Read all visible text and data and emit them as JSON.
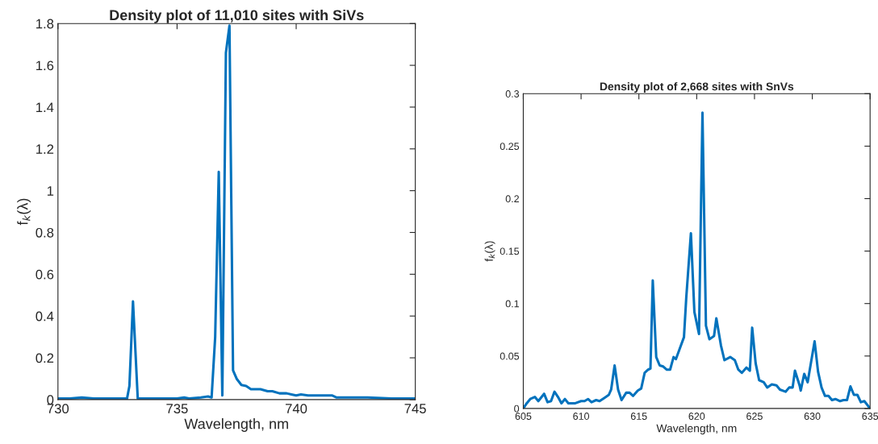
{
  "chart_data": [
    {
      "type": "line",
      "title": "Density plot of 11,010 sites with SiVs",
      "xlabel": "Wavelength, nm",
      "ylabel": "f$_{k}$(λ)",
      "xlim": [
        730,
        745
      ],
      "xticks": [
        730,
        735,
        740,
        745
      ],
      "ylim": [
        0,
        1.8
      ],
      "yticks": [
        0,
        0.2,
        0.4,
        0.6,
        0.8,
        1,
        1.2,
        1.4,
        1.6,
        1.8
      ],
      "grid": false,
      "marker": "none",
      "line_style": "solid",
      "series": [
        {
          "color": "#0072bd",
          "x": [
            730,
            730.5,
            731,
            731.5,
            732,
            732.5,
            732.9,
            733.0,
            733.15,
            733.35,
            734,
            735,
            735.3,
            735.5,
            736.0,
            736.3,
            736.45,
            736.6,
            736.75,
            736.9,
            737.05,
            737.2,
            737.35,
            737.5,
            737.7,
            737.9,
            738.1,
            738.5,
            738.8,
            739.0,
            739.3,
            739.6,
            739.8,
            740.0,
            740.2,
            740.5,
            741,
            741.5,
            741.7,
            742,
            742.5,
            743,
            744,
            745
          ],
          "values": [
            0.005,
            0.005,
            0.01,
            0.005,
            0.005,
            0.005,
            0.005,
            0.065,
            0.47,
            0.005,
            0.005,
            0.005,
            0.01,
            0.005,
            0.01,
            0.015,
            0.01,
            0.3,
            1.09,
            0.02,
            1.66,
            1.79,
            0.14,
            0.1,
            0.07,
            0.065,
            0.05,
            0.05,
            0.04,
            0.04,
            0.03,
            0.03,
            0.025,
            0.02,
            0.025,
            0.02,
            0.02,
            0.02,
            0.01,
            0.01,
            0.01,
            0.01,
            0.005,
            0.005
          ]
        }
      ]
    },
    {
      "type": "line",
      "title": "Density plot of 2,668 sites with SnVs",
      "xlabel": "Wavelength, nm",
      "ylabel": "f$_{k}$(λ)",
      "xlim": [
        605,
        635
      ],
      "xticks": [
        605,
        610,
        615,
        620,
        625,
        630,
        635
      ],
      "ylim": [
        0,
        0.3
      ],
      "yticks": [
        0,
        0.05,
        0.1,
        0.15,
        0.2,
        0.25,
        0.3
      ],
      "grid": false,
      "marker": "none",
      "line_style": "solid",
      "series": [
        {
          "color": "#0072bd",
          "x": [
            605,
            605.3,
            605.6,
            606.0,
            606.3,
            606.8,
            607.1,
            607.4,
            607.7,
            608.0,
            608.3,
            608.6,
            608.9,
            609.5,
            610,
            610.3,
            610.6,
            610.9,
            611.3,
            611.6,
            612,
            612.4,
            612.6,
            612.9,
            613.2,
            613.5,
            613.9,
            614.2,
            614.5,
            614.9,
            615.2,
            615.5,
            615.8,
            616.0,
            616.2,
            616.5,
            616.8,
            617.1,
            617.4,
            617.7,
            618.0,
            618.2,
            618.5,
            618.9,
            619.1,
            619.5,
            619.8,
            620.2,
            620.5,
            620.8,
            621.1,
            621.5,
            621.7,
            622.1,
            622.4,
            622.9,
            623.3,
            623.6,
            623.9,
            624.3,
            624.6,
            624.8,
            625.1,
            625.4,
            625.8,
            626.1,
            626.5,
            626.9,
            627.2,
            627.7,
            628.0,
            628.3,
            628.5,
            628.9,
            629.0,
            629.3,
            629.6,
            630.2,
            630.5,
            630.8,
            631.1,
            631.4,
            631.7,
            632,
            632.4,
            632.7,
            633.0,
            633.3,
            633.6,
            633.9,
            634.2,
            634.5,
            635.0
          ],
          "values": [
            0,
            0.005,
            0.009,
            0.011,
            0.007,
            0.014,
            0.006,
            0.007,
            0.016,
            0.011,
            0.005,
            0.009,
            0.005,
            0.005,
            0.007,
            0.007,
            0.009,
            0.006,
            0.008,
            0.007,
            0.01,
            0.013,
            0.018,
            0.041,
            0.018,
            0.008,
            0.015,
            0.015,
            0.012,
            0.017,
            0.019,
            0.034,
            0.037,
            0.038,
            0.122,
            0.049,
            0.041,
            0.04,
            0.037,
            0.037,
            0.049,
            0.047,
            0.056,
            0.068,
            0.106,
            0.167,
            0.092,
            0.071,
            0.282,
            0.079,
            0.066,
            0.069,
            0.086,
            0.06,
            0.046,
            0.049,
            0.046,
            0.037,
            0.034,
            0.039,
            0.036,
            0.077,
            0.043,
            0.027,
            0.025,
            0.02,
            0.023,
            0.022,
            0.018,
            0.016,
            0.02,
            0.02,
            0.036,
            0.022,
            0.017,
            0.033,
            0.025,
            0.064,
            0.035,
            0.02,
            0.012,
            0.012,
            0.008,
            0.009,
            0.007,
            0.008,
            0.008,
            0.021,
            0.013,
            0.013,
            0.006,
            0.007,
            0
          ]
        }
      ]
    }
  ]
}
